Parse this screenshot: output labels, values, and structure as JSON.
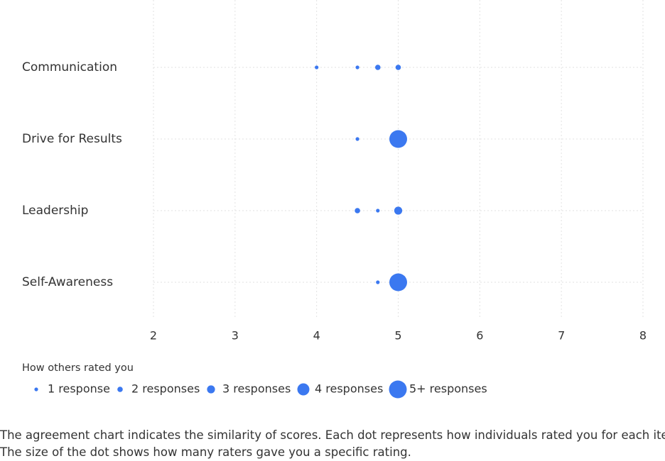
{
  "chart_data": {
    "type": "scatter",
    "series": [
      {
        "name": "Communication",
        "x": [
          4,
          4.5,
          4.75,
          5
        ],
        "sizes": [
          1,
          1,
          2,
          2
        ]
      },
      {
        "name": "Drive for Results",
        "x": [
          4.5,
          5
        ],
        "sizes": [
          1,
          5
        ]
      },
      {
        "name": "Leadership",
        "x": [
          4.5,
          4.75,
          5
        ],
        "sizes": [
          2,
          1,
          3
        ]
      },
      {
        "name": "Self-Awareness",
        "x": [
          4.75,
          5
        ],
        "sizes": [
          1,
          5
        ]
      }
    ],
    "color": "#3b78f0",
    "xlim": [
      2,
      8
    ],
    "xticks": [
      2,
      3,
      4,
      5,
      6,
      7,
      8
    ],
    "grid": true,
    "size_legend": {
      "title": "How others rated you",
      "sizes": [
        1,
        2,
        3,
        4,
        5
      ],
      "labels": [
        "1 response",
        "2 responses",
        "3 responses",
        "4 responses",
        "5+ responses"
      ]
    }
  },
  "footer": {
    "lines": [
      "The agreement chart indicates the similarity of scores. Each dot represents how individuals rated you for each item.",
      "The size of the dot shows how many raters gave you a specific rating."
    ]
  }
}
